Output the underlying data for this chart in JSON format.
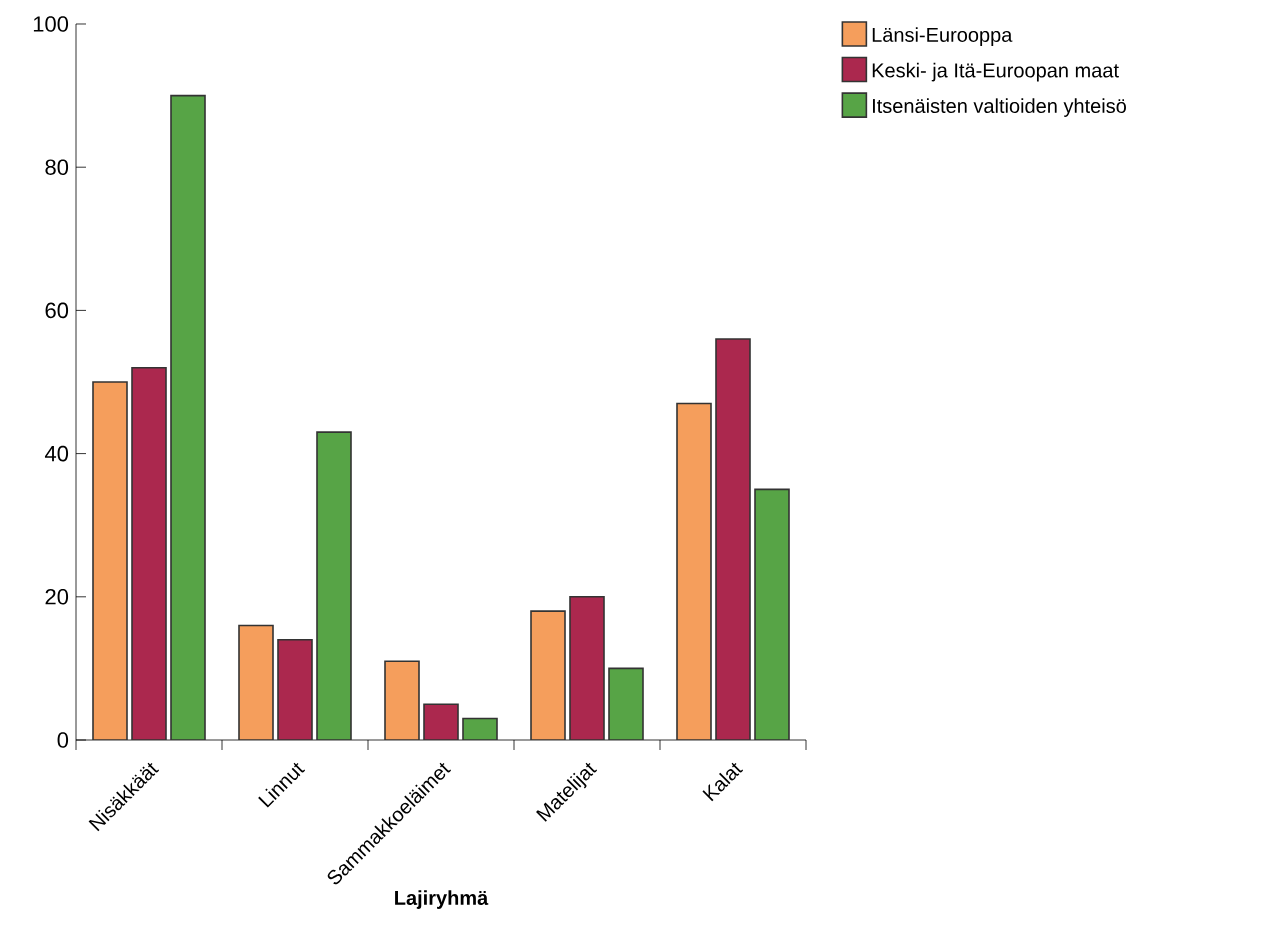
{
  "chart_data": {
    "type": "bar",
    "xlabel": "Lajiryhmä",
    "categories": [
      "Nisäkkäät",
      "Linnut",
      "Sammakkoeläimet",
      "Matelijat",
      "Kalat"
    ],
    "series": [
      {
        "name": "Länsi-Eurooppa",
        "color": "#f59e5c",
        "values": [
          50,
          16,
          11,
          18,
          47
        ]
      },
      {
        "name": "Keski- ja Itä-Euroopan maat",
        "color": "#ab284e",
        "values": [
          52,
          14,
          5,
          20,
          56
        ]
      },
      {
        "name": "Itsenäisten valtioiden yhteisö",
        "color": "#57a446",
        "values": [
          90,
          43,
          3,
          10,
          35
        ]
      }
    ],
    "ylim": [
      0,
      100
    ],
    "yticks": [
      0,
      20,
      40,
      60,
      80,
      100
    ],
    "grid": false,
    "legend": "top right"
  }
}
